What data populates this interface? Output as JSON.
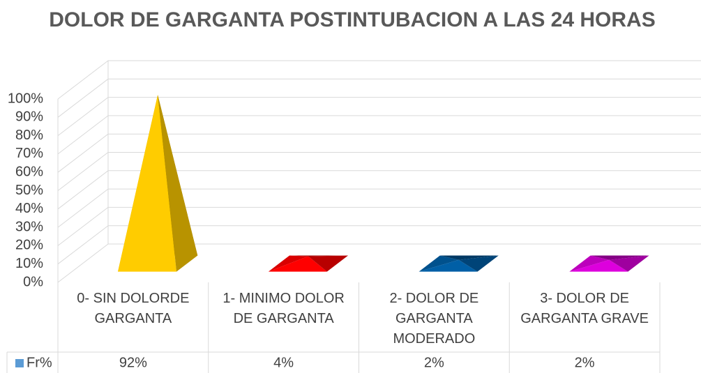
{
  "chart_data": {
    "type": "pyramid3d",
    "title": "DOLOR DE GARGANTA POSTINTUBACION A LAS 24 HORAS",
    "categories": [
      "0- SIN DOLORDE GARGANTA",
      "1- MINIMO DOLOR DE GARGANTA",
      "2- DOLOR DE GARGANTA MODERADO",
      "3- DOLOR DE GARGANTA GRAVE"
    ],
    "series": [
      {
        "name": "Fr%",
        "color": "#5b9bd5",
        "point_colors": [
          "#ffcc00",
          "#ff0000",
          "#005fa6",
          "#dd00dd"
        ],
        "values": [
          92,
          4,
          2,
          2
        ],
        "value_labels": [
          "92%",
          "4%",
          "2%",
          "2%"
        ]
      }
    ],
    "ylim": [
      0,
      100
    ],
    "yticks": [
      {
        "value": 0,
        "label": "0%"
      },
      {
        "value": 10,
        "label": "10%"
      },
      {
        "value": 20,
        "label": "20%"
      },
      {
        "value": 30,
        "label": "30%"
      },
      {
        "value": 40,
        "label": "40%"
      },
      {
        "value": 50,
        "label": "50%"
      },
      {
        "value": 60,
        "label": "60%"
      },
      {
        "value": 70,
        "label": "70%"
      },
      {
        "value": 80,
        "label": "80%"
      },
      {
        "value": 90,
        "label": "90%"
      },
      {
        "value": 100,
        "label": "100%"
      }
    ],
    "grid": true,
    "data_table": true
  }
}
